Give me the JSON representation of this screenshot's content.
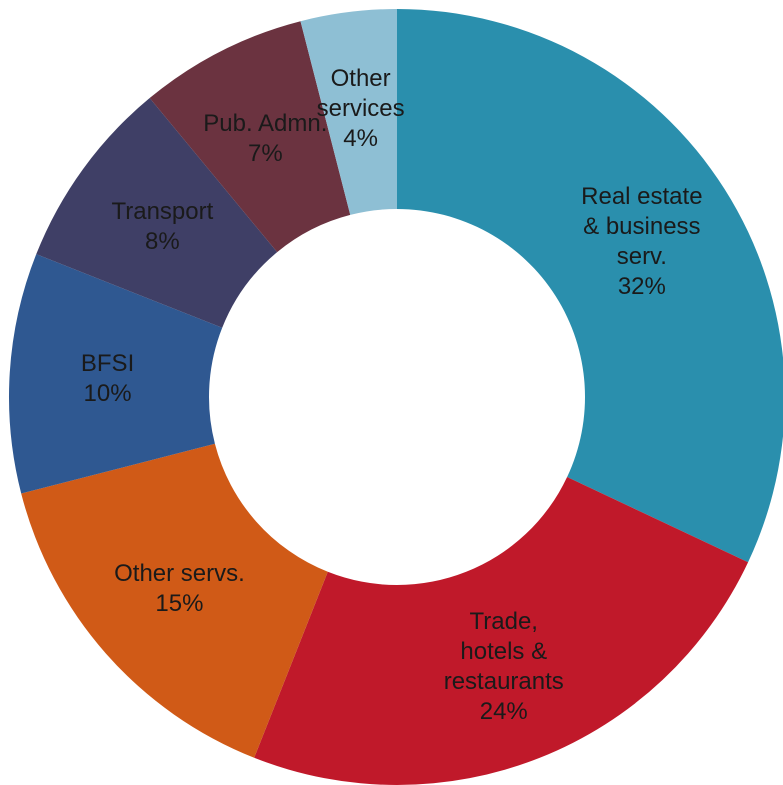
{
  "chart_data": {
    "type": "donut",
    "categories": [
      "Real estate\n& business\nserv.",
      "Trade,\nhotels &\nrestaurants",
      "Other servs.",
      "BFSI",
      "Transport",
      "Pub. Admn.",
      "Other\nservices"
    ],
    "values": [
      32,
      24,
      15,
      10,
      8,
      7,
      4
    ],
    "value_labels": [
      "32%",
      "24%",
      "15%",
      "10%",
      "8%",
      "7%",
      "4%"
    ],
    "colors": [
      "#2a8fad",
      "#c0192a",
      "#d05a17",
      "#2f5891",
      "#3f3f66",
      "#6b3340",
      "#8ebfd4"
    ]
  }
}
